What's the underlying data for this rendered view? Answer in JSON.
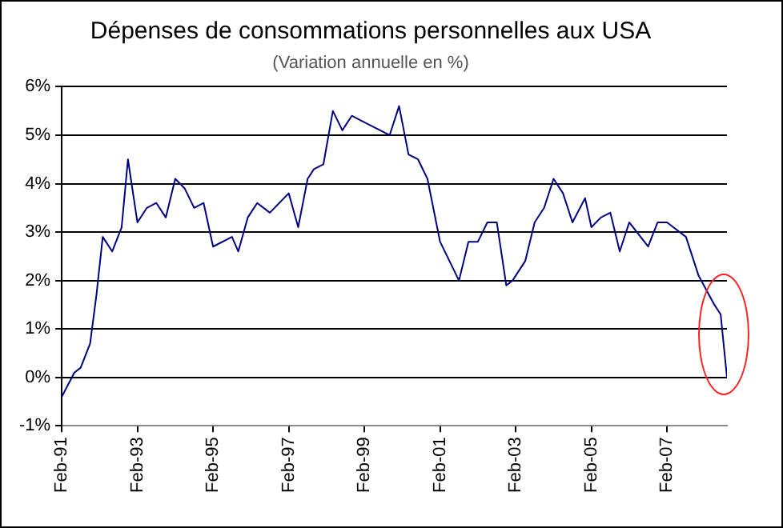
{
  "chart_data": {
    "type": "line",
    "title": "Dépenses de consommations personnelles aux USA",
    "subtitle": "(Variation annuelle en %)",
    "x": [
      "1991-02",
      "1991-06",
      "1991-08",
      "1991-11",
      "1992-01",
      "1992-03",
      "1992-06",
      "1992-09",
      "1992-11",
      "1993-02",
      "1993-05",
      "1993-08",
      "1993-11",
      "1994-02",
      "1994-05",
      "1994-08",
      "1994-11",
      "1995-02",
      "1995-08",
      "1995-10",
      "1996-01",
      "1996-04",
      "1996-08",
      "1997-02",
      "1997-05",
      "1997-08",
      "1997-10",
      "1998-01",
      "1998-04",
      "1998-07",
      "1998-10",
      "1999-01",
      "1999-04",
      "1999-10",
      "2000-01",
      "2000-04",
      "2000-07",
      "2000-10",
      "2001-02",
      "2001-08",
      "2001-11",
      "2002-02",
      "2002-05",
      "2002-08",
      "2002-11",
      "2003-01",
      "2003-05",
      "2003-08",
      "2003-11",
      "2004-02",
      "2004-05",
      "2004-08",
      "2004-12",
      "2005-02",
      "2005-05",
      "2005-08",
      "2005-11",
      "2006-02",
      "2006-08",
      "2006-11",
      "2007-02",
      "2007-08",
      "2007-12",
      "2008-05",
      "2008-07",
      "2008-09"
    ],
    "series": [
      {
        "color": "#000080",
        "values": [
          -0.4,
          0.1,
          0.2,
          0.7,
          1.7,
          2.9,
          2.6,
          3.1,
          4.5,
          3.2,
          3.5,
          3.6,
          3.3,
          4.1,
          3.9,
          3.5,
          3.6,
          2.7,
          2.9,
          2.6,
          3.3,
          3.6,
          3.4,
          3.8,
          3.1,
          4.1,
          4.3,
          4.4,
          5.5,
          5.1,
          5.4,
          5.3,
          5.2,
          5.0,
          5.6,
          4.6,
          4.5,
          4.1,
          2.8,
          2.0,
          2.8,
          2.8,
          3.2,
          3.2,
          1.9,
          2.0,
          2.4,
          3.2,
          3.5,
          4.1,
          3.8,
          3.2,
          3.7,
          3.1,
          3.3,
          3.4,
          2.6,
          3.2,
          2.7,
          3.2,
          3.2,
          2.9,
          2.1,
          1.5,
          1.3,
          0.0
        ]
      }
    ],
    "xlim": [
      "1991-02",
      "2008-09"
    ],
    "xticks": [
      {
        "value": "1991-02",
        "label": "Feb-91"
      },
      {
        "value": "1993-02",
        "label": "Feb-93"
      },
      {
        "value": "1995-02",
        "label": "Feb-95"
      },
      {
        "value": "1997-02",
        "label": "Feb-97"
      },
      {
        "value": "1999-02",
        "label": "Feb-99"
      },
      {
        "value": "2001-02",
        "label": "Feb-01"
      },
      {
        "value": "2003-02",
        "label": "Feb-03"
      },
      {
        "value": "2005-02",
        "label": "Feb-05"
      },
      {
        "value": "2007-02",
        "label": "Feb-07"
      }
    ],
    "ylim": [
      -1,
      6
    ],
    "yticks": [
      {
        "value": -1,
        "label": "-1%"
      },
      {
        "value": 0,
        "label": "0%"
      },
      {
        "value": 1,
        "label": "1%"
      },
      {
        "value": 2,
        "label": "2%"
      },
      {
        "value": 3,
        "label": "3%"
      },
      {
        "value": 4,
        "label": "4%"
      },
      {
        "value": 5,
        "label": "5%"
      },
      {
        "value": 6,
        "label": "6%"
      }
    ],
    "grid": "y",
    "legend": false,
    "marker": "none",
    "line_style": "solid"
  }
}
